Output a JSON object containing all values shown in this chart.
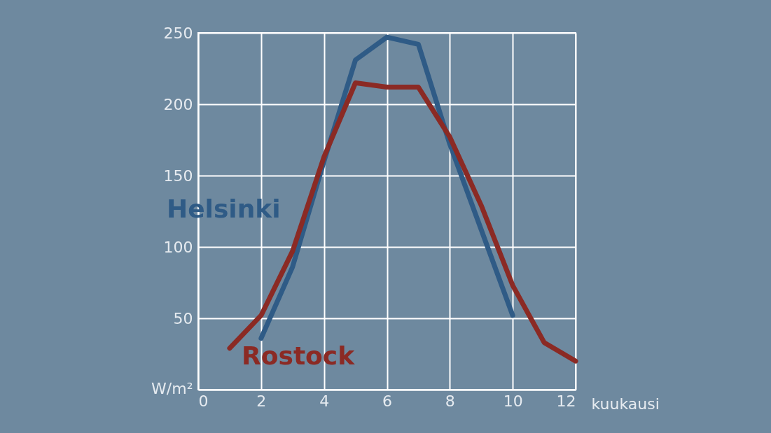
{
  "chart_data": {
    "type": "line",
    "x": [
      1,
      2,
      3,
      4,
      5,
      6,
      7,
      8,
      9,
      10,
      11,
      12
    ],
    "series": [
      {
        "name": "Helsinki",
        "color": "#2f5b86",
        "values": [
          null,
          36,
          86,
          160,
          231,
          247,
          242,
          172,
          112,
          52,
          null,
          null
        ]
      },
      {
        "name": "Rostock",
        "color": "#8b2a24",
        "values": [
          29,
          52,
          97,
          163,
          215,
          212,
          212,
          177,
          129,
          73,
          33,
          20
        ]
      }
    ],
    "xlabel": "kuukausi",
    "ylabel": "W/m²",
    "xlim": [
      0,
      12
    ],
    "xticks": [
      0,
      2,
      4,
      6,
      8,
      10,
      12
    ],
    "ylim": [
      0,
      250
    ],
    "yticks": [
      {
        "value": 0,
        "label": null
      },
      50,
      100,
      150,
      200,
      250
    ],
    "grid": true,
    "marker": "none",
    "line_style": "solid"
  }
}
